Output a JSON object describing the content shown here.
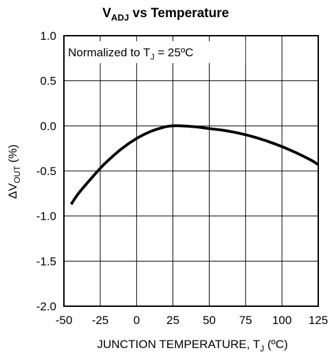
{
  "chart_data": {
    "type": "line",
    "title": {
      "main": "V",
      "sub": "ADJ",
      "rest": " vs Temperature"
    },
    "xlabel": {
      "main": "JUNCTION TEMPERATURE, T",
      "sub": "J",
      "rest": " (ºC)"
    },
    "ylabel": {
      "main": "ΔV",
      "sub": "OUT",
      "rest": " (%)"
    },
    "annotation": {
      "main": "Normalized to T",
      "sub": "J",
      "rest": " = 25ºC"
    },
    "xlim": [
      -50,
      125
    ],
    "ylim": [
      -2.0,
      1.0
    ],
    "x_ticks": [
      -50,
      -25,
      0,
      25,
      50,
      75,
      100,
      125
    ],
    "x_tick_labels": [
      "-50",
      "-25",
      "0",
      "25",
      "50",
      "75",
      "100",
      "125"
    ],
    "y_ticks": [
      1.0,
      0.5,
      0.0,
      -0.5,
      -1.0,
      -1.5,
      -2.0
    ],
    "y_tick_labels": [
      "1.0",
      "0.5",
      "0.0",
      "-0.5",
      "-1.0",
      "-1.5",
      "-2.0"
    ],
    "grid": true,
    "series": [
      {
        "x": [
          -45,
          -40,
          -30,
          -25,
          -20,
          -10,
          0,
          10,
          20,
          25,
          30,
          40,
          50,
          60,
          70,
          80,
          90,
          100,
          110,
          120,
          125
        ],
        "y": [
          -0.87,
          -0.75,
          -0.56,
          -0.47,
          -0.39,
          -0.25,
          -0.14,
          -0.06,
          -0.01,
          0.0,
          0.0,
          -0.01,
          -0.03,
          -0.05,
          -0.08,
          -0.12,
          -0.17,
          -0.23,
          -0.3,
          -0.38,
          -0.43
        ]
      }
    ]
  }
}
